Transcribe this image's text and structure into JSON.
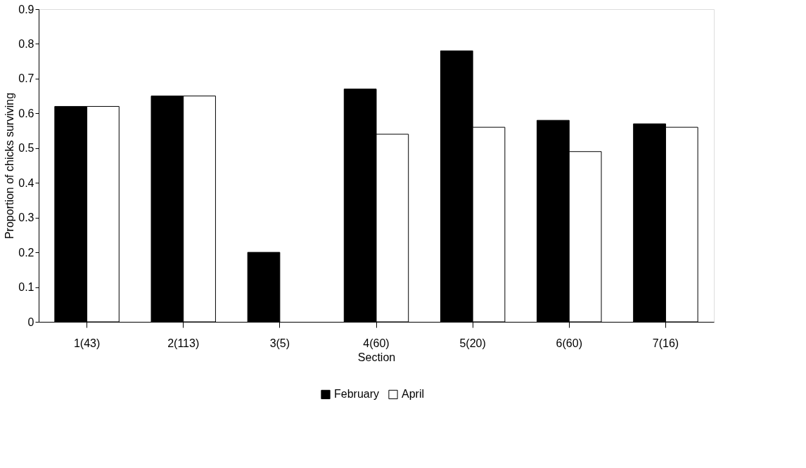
{
  "chart_data": {
    "type": "bar",
    "xlabel": "Section",
    "ylabel": "Proportion of chicks surviving",
    "categories": [
      "1(43)",
      "2(113)",
      "3(5)",
      "4(60)",
      "5(20)",
      "6(60)",
      "7(16)"
    ],
    "series": [
      {
        "name": "February",
        "color": "#000000",
        "values": [
          0.62,
          0.65,
          0.2,
          0.67,
          0.78,
          0.58,
          0.57
        ]
      },
      {
        "name": "April",
        "color": "#ffffff",
        "values": [
          0.62,
          0.65,
          null,
          0.54,
          0.56,
          0.49,
          0.56
        ]
      }
    ],
    "ylim": [
      0,
      0.9
    ],
    "yticks": [
      0,
      0.1,
      0.2,
      0.3,
      0.4,
      0.5,
      0.6,
      0.7,
      0.8,
      0.9
    ],
    "grid": false,
    "legend": "bottom"
  }
}
